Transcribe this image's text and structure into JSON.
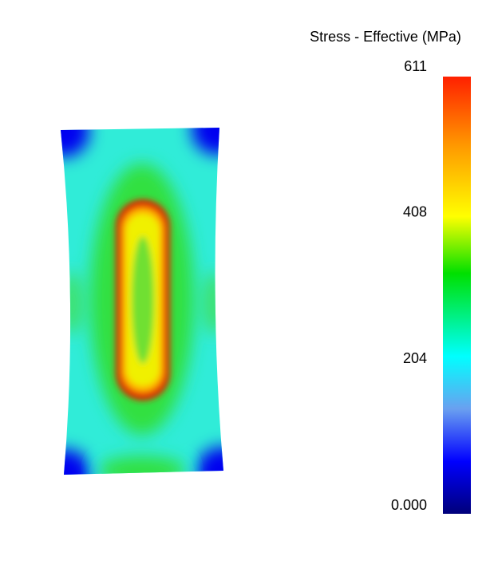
{
  "colorbar": {
    "title": "Stress - Effective (MPa)",
    "ticks": [
      {
        "value": 0,
        "label": "0.000"
      },
      204,
      408,
      611
    ]
  }
}
